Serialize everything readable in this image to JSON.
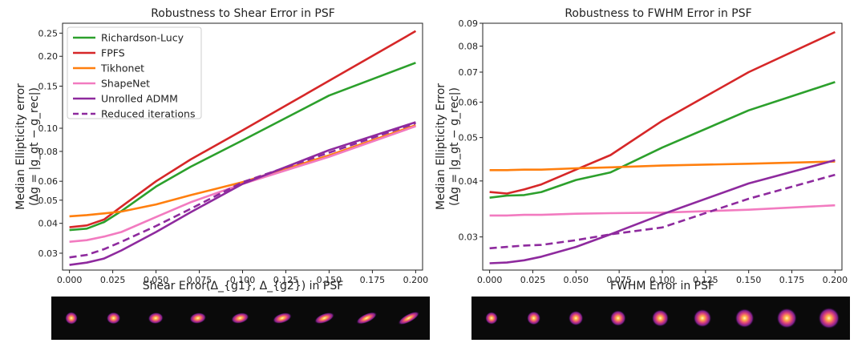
{
  "panels": [
    {
      "title": "Robustness to Shear Error in PSF",
      "xlabel": "Shear Error(Δ_{g1}, Δ_{g2}) in PSF",
      "ylabel": "Median Ellipticity error",
      "ylabel2": "(Δg = |g_gt − g_rec|)",
      "image_strip": "psf-shear-sequence"
    },
    {
      "title": "Robustness to FWHM Error in PSF",
      "xlabel": "FWHM Error in PSF",
      "ylabel": "Median Ellipticity Error",
      "ylabel2": "(Δg = |g_gt − g_rec|)",
      "image_strip": "psf-fwhm-sequence"
    }
  ],
  "legend": [
    {
      "label": "Richardson-Lucy",
      "color": "#2ca02c",
      "dash": false
    },
    {
      "label": "FPFS",
      "color": "#d62728",
      "dash": false
    },
    {
      "label": "Tikhonet",
      "color": "#ff7f0e",
      "dash": false
    },
    {
      "label": "ShapeNet",
      "color": "#f27bc0",
      "dash": false
    },
    {
      "label": "Unrolled ADMM",
      "color": "#8e2a9e",
      "dash": false
    },
    {
      "label": "Reduced iterations",
      "color": "#8e2a9e",
      "dash": true
    }
  ],
  "chart_data": [
    {
      "type": "line",
      "title": "Robustness to Shear Error in PSF",
      "xlabel": "Shear Error(Δ_{g1}, Δ_{g2}) in PSF",
      "ylabel": "Median Ellipticity error (Δg = |g_gt − g_rec|)",
      "yscale": "log",
      "xlim": [
        -0.004,
        0.204
      ],
      "ylim": [
        0.0255,
        0.275
      ],
      "xticks": [
        "0.000",
        "0.025",
        "0.050",
        "0.075",
        "0.100",
        "0.125",
        "0.150",
        "0.175",
        "0.200"
      ],
      "yticks": [
        "0.03",
        "0.04",
        "0.05",
        "0.06",
        "0.08",
        "0.10",
        "0.15",
        "0.20",
        "0.25"
      ],
      "legend_position": "upper-left",
      "x": [
        0.0,
        0.01,
        0.02,
        0.03,
        0.05,
        0.07,
        0.1,
        0.15,
        0.2
      ],
      "series": [
        {
          "name": "Richardson-Lucy",
          "color": "#2ca02c",
          "values": [
            0.0375,
            0.038,
            0.0405,
            0.045,
            0.057,
            0.069,
            0.089,
            0.137,
            0.188
          ]
        },
        {
          "name": "FPFS",
          "color": "#d62728",
          "values": [
            0.0385,
            0.0392,
            0.0415,
            0.047,
            0.06,
            0.074,
            0.098,
            0.158,
            0.255
          ]
        },
        {
          "name": "Tikhonet",
          "color": "#ff7f0e",
          "values": [
            0.0428,
            0.0433,
            0.044,
            0.0448,
            0.048,
            0.0525,
            0.0595,
            0.077,
            0.103
          ]
        },
        {
          "name": "ShapeNet",
          "color": "#f27bc0",
          "values": [
            0.0335,
            0.034,
            0.0352,
            0.0368,
            0.0425,
            0.049,
            0.0585,
            0.076,
            0.102
          ]
        },
        {
          "name": "Unrolled ADMM",
          "color": "#8e2a9e",
          "dash": false,
          "values": [
            0.0268,
            0.0274,
            0.0285,
            0.0308,
            0.0368,
            0.0445,
            0.0585,
            0.081,
            0.106
          ]
        },
        {
          "name": "Reduced iterations",
          "color": "#8e2a9e",
          "dash": true,
          "values": [
            0.0288,
            0.0295,
            0.0312,
            0.0335,
            0.039,
            0.046,
            0.0595,
            0.079,
            0.105
          ]
        }
      ]
    },
    {
      "type": "line",
      "title": "Robustness to FWHM Error in PSF",
      "xlabel": "FWHM Error in PSF",
      "ylabel": "Median Ellipticity Error (Δg = |g_gt − g_rec|)",
      "yscale": "log",
      "xlim": [
        -0.004,
        0.204
      ],
      "ylim": [
        0.0253,
        0.09
      ],
      "xticks": [
        "0.000",
        "0.025",
        "0.050",
        "0.075",
        "0.100",
        "0.125",
        "0.150",
        "0.175",
        "0.200"
      ],
      "yticks": [
        "0.03",
        "0.04",
        "0.05",
        "0.06",
        "0.07",
        "0.08",
        "0.09"
      ],
      "x": [
        0.0,
        0.01,
        0.02,
        0.03,
        0.05,
        0.07,
        0.1,
        0.15,
        0.2
      ],
      "series": [
        {
          "name": "Richardson-Lucy",
          "color": "#2ca02c",
          "values": [
            0.0367,
            0.0371,
            0.0372,
            0.0378,
            0.0402,
            0.0418,
            0.0475,
            0.0575,
            0.0665
          ]
        },
        {
          "name": "FPFS",
          "color": "#d62728",
          "values": [
            0.0378,
            0.0375,
            0.0383,
            0.0393,
            0.0424,
            0.0457,
            0.0545,
            0.07,
            0.086
          ]
        },
        {
          "name": "Tikhonet",
          "color": "#ff7f0e",
          "values": [
            0.0423,
            0.0423,
            0.0424,
            0.0424,
            0.0427,
            0.0429,
            0.0433,
            0.0437,
            0.0442
          ]
        },
        {
          "name": "ShapeNet",
          "color": "#f27bc0",
          "values": [
            0.0335,
            0.0335,
            0.0336,
            0.0336,
            0.0338,
            0.0339,
            0.034,
            0.0345,
            0.0353
          ]
        },
        {
          "name": "Unrolled ADMM",
          "color": "#8e2a9e",
          "dash": false,
          "values": [
            0.0262,
            0.0263,
            0.0266,
            0.0271,
            0.0285,
            0.0304,
            0.0337,
            0.0395,
            0.0445
          ]
        },
        {
          "name": "Reduced iterations",
          "color": "#8e2a9e",
          "dash": true,
          "values": [
            0.0283,
            0.0285,
            0.0287,
            0.0288,
            0.0295,
            0.0304,
            0.0315,
            0.0365,
            0.0413
          ]
        }
      ]
    }
  ]
}
